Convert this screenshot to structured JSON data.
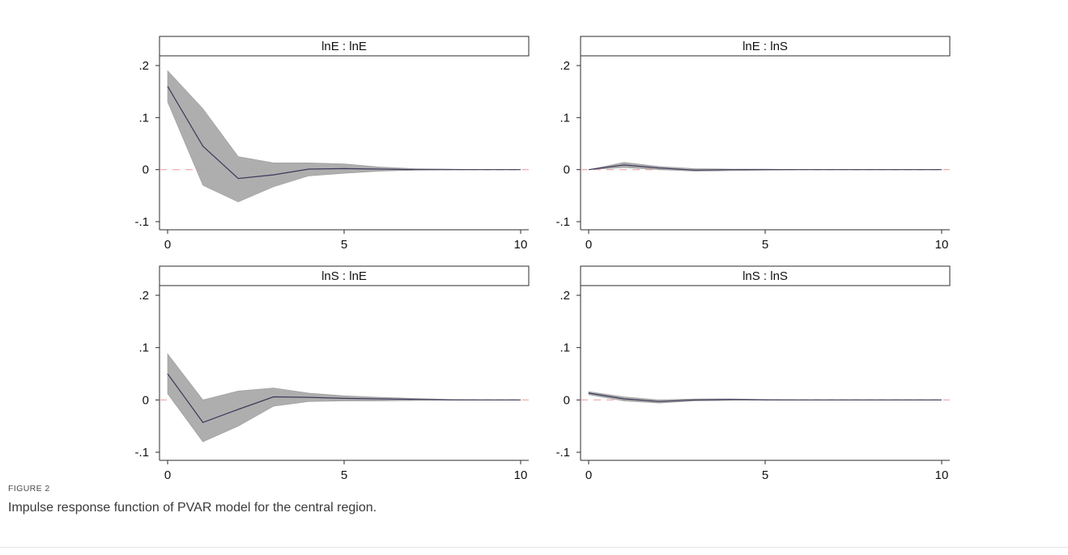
{
  "figure": {
    "label": "FIGURE 2",
    "caption": "Impulse response function of PVAR model for the central region."
  },
  "chart_data": [
    {
      "type": "line",
      "title": "lnE : lnE",
      "xlim": [
        0,
        10
      ],
      "ylim": [
        -0.1,
        0.2
      ],
      "xticks": [
        0,
        5,
        10
      ],
      "xtick_labels": [
        "0",
        "5",
        "10"
      ],
      "yticks": [
        -0.1,
        0,
        0.1,
        0.2
      ],
      "ytick_labels": [
        "-.1",
        "0",
        ".1",
        ".2"
      ],
      "x": [
        0,
        1,
        2,
        3,
        4,
        5,
        6,
        7,
        8,
        9,
        10
      ],
      "series": [
        {
          "role": "estimate",
          "values": [
            0.16,
            0.045,
            -0.017,
            -0.01,
            0.001,
            0.002,
            0.001,
            0.0,
            0.0,
            0.0,
            0.0
          ]
        },
        {
          "role": "upper",
          "values": [
            0.19,
            0.117,
            0.025,
            0.013,
            0.013,
            0.011,
            0.005,
            0.002,
            0.001,
            0.0,
            0.0
          ]
        },
        {
          "role": "lower",
          "values": [
            0.13,
            -0.03,
            -0.062,
            -0.033,
            -0.012,
            -0.007,
            -0.003,
            -0.001,
            0.0,
            0.0,
            0.0
          ]
        }
      ],
      "reference_line": 0,
      "colors": {
        "estimate": "#3a3a5c",
        "band": "#aaaaaa",
        "reference": "#f0a5a5"
      }
    },
    {
      "type": "line",
      "title": "lnE : lnS",
      "xlim": [
        0,
        10
      ],
      "ylim": [
        -0.1,
        0.2
      ],
      "xticks": [
        0,
        5,
        10
      ],
      "xtick_labels": [
        "0",
        "5",
        "10"
      ],
      "yticks": [
        -0.1,
        0,
        0.1,
        0.2
      ],
      "ytick_labels": [
        "-.1",
        "0",
        ".1",
        ".2"
      ],
      "x": [
        0,
        1,
        2,
        3,
        4,
        5,
        6,
        7,
        8,
        9,
        10
      ],
      "series": [
        {
          "role": "estimate",
          "values": [
            0.0,
            0.009,
            0.003,
            -0.001,
            0.0,
            0.0,
            0.0,
            0.0,
            0.0,
            0.0,
            0.0
          ]
        },
        {
          "role": "upper",
          "values": [
            0.0,
            0.014,
            0.006,
            0.002,
            0.001,
            0.001,
            0.0,
            0.0,
            0.0,
            0.0,
            0.0
          ]
        },
        {
          "role": "lower",
          "values": [
            0.0,
            0.004,
            0.0,
            -0.003,
            -0.002,
            -0.001,
            0.0,
            0.0,
            0.0,
            0.0,
            0.0
          ]
        }
      ],
      "reference_line": 0,
      "colors": {
        "estimate": "#3a3a5c",
        "band": "#aaaaaa",
        "reference": "#f0a5a5"
      }
    },
    {
      "type": "line",
      "title": "lnS : lnE",
      "xlim": [
        0,
        10
      ],
      "ylim": [
        -0.1,
        0.2
      ],
      "xticks": [
        0,
        5,
        10
      ],
      "xtick_labels": [
        "0",
        "5",
        "10"
      ],
      "yticks": [
        -0.1,
        0,
        0.1,
        0.2
      ],
      "ytick_labels": [
        "-.1",
        "0",
        ".1",
        ".2"
      ],
      "x": [
        0,
        1,
        2,
        3,
        4,
        5,
        6,
        7,
        8,
        9,
        10
      ],
      "series": [
        {
          "role": "estimate",
          "values": [
            0.05,
            -0.043,
            -0.018,
            0.006,
            0.005,
            0.003,
            0.002,
            0.001,
            0.0,
            0.0,
            0.0
          ]
        },
        {
          "role": "upper",
          "values": [
            0.088,
            0.0,
            0.017,
            0.023,
            0.013,
            0.008,
            0.005,
            0.003,
            0.001,
            0.0,
            0.0
          ]
        },
        {
          "role": "lower",
          "values": [
            0.012,
            -0.08,
            -0.05,
            -0.012,
            -0.003,
            -0.002,
            -0.002,
            -0.001,
            0.0,
            0.0,
            0.0
          ]
        }
      ],
      "reference_line": 0,
      "colors": {
        "estimate": "#3a3a5c",
        "band": "#aaaaaa",
        "reference": "#f0a5a5"
      }
    },
    {
      "type": "line",
      "title": "lnS : lnS",
      "xlim": [
        0,
        10
      ],
      "ylim": [
        -0.1,
        0.2
      ],
      "xticks": [
        0,
        5,
        10
      ],
      "xtick_labels": [
        "0",
        "5",
        "10"
      ],
      "yticks": [
        -0.1,
        0,
        0.1,
        0.2
      ],
      "ytick_labels": [
        "-.1",
        "0",
        ".1",
        ".2"
      ],
      "x": [
        0,
        1,
        2,
        3,
        4,
        5,
        6,
        7,
        8,
        9,
        10
      ],
      "series": [
        {
          "role": "estimate",
          "values": [
            0.013,
            0.002,
            -0.003,
            0.0,
            0.001,
            0.0,
            0.0,
            0.0,
            0.0,
            0.0,
            0.0
          ]
        },
        {
          "role": "upper",
          "values": [
            0.016,
            0.006,
            0.0,
            0.002,
            0.002,
            0.001,
            0.0,
            0.0,
            0.0,
            0.0,
            0.0
          ]
        },
        {
          "role": "lower",
          "values": [
            0.01,
            -0.002,
            -0.006,
            -0.002,
            -0.001,
            0.0,
            0.0,
            0.0,
            0.0,
            0.0,
            0.0
          ]
        }
      ],
      "reference_line": 0,
      "colors": {
        "estimate": "#3a3a5c",
        "band": "#aaaaaa",
        "reference": "#f0a5a5"
      }
    }
  ]
}
